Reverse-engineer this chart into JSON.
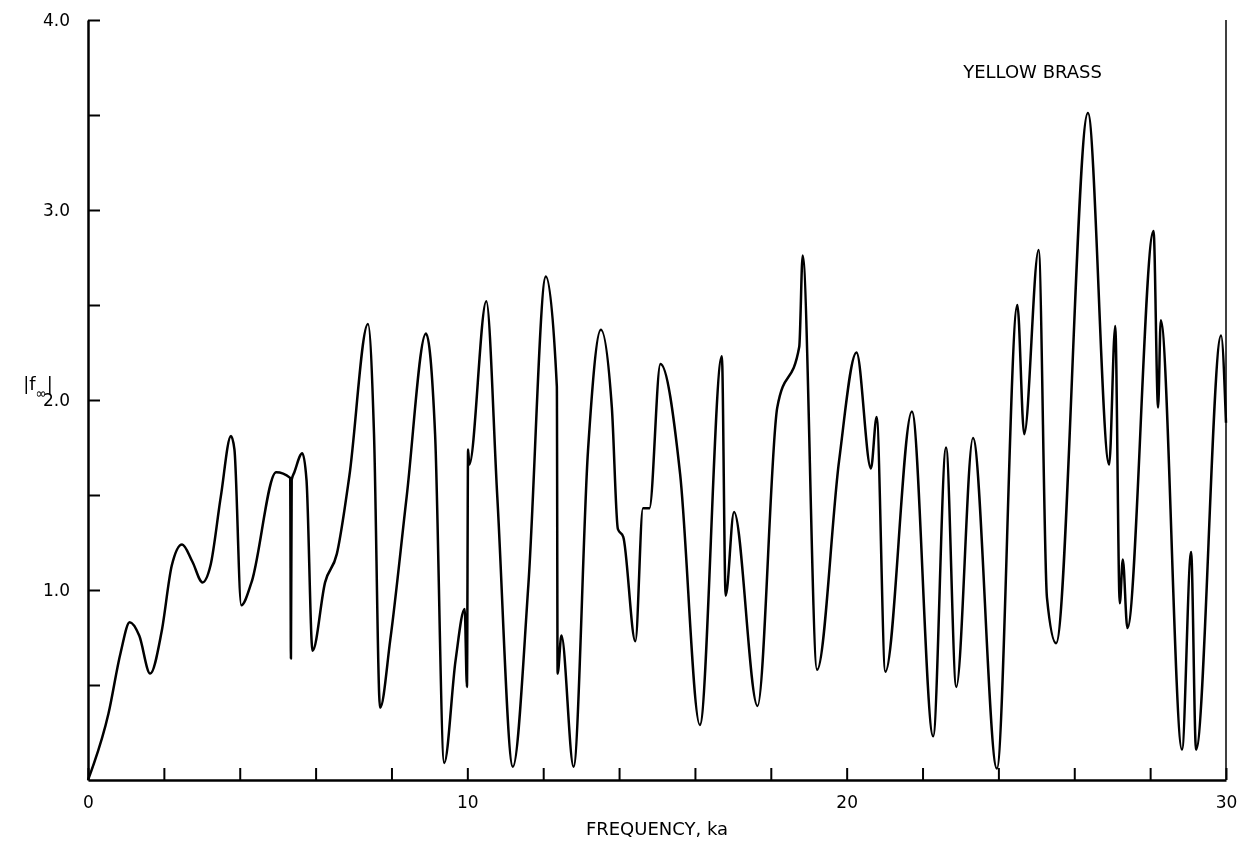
{
  "chart_data": {
    "type": "line",
    "title": "YELLOW BRASS",
    "xlabel": "FREQUENCY, ka",
    "ylabel": "|f$_{∞}$|",
    "xlim": [
      0,
      30
    ],
    "xticks": [
      0,
      {
        "value": 2,
        "label": null
      },
      {
        "value": 4,
        "label": null
      },
      {
        "value": 6,
        "label": null
      },
      {
        "value": 8,
        "label": null
      },
      10,
      {
        "value": 12,
        "label": null
      },
      {
        "value": 14,
        "label": null
      },
      {
        "value": 16,
        "label": null
      },
      {
        "value": 18,
        "label": null
      },
      20,
      {
        "value": 22,
        "label": null
      },
      {
        "value": 24,
        "label": null
      },
      {
        "value": 26,
        "label": null
      },
      {
        "value": 28,
        "label": null
      },
      30
    ],
    "ylim": [
      0,
      4
    ],
    "yticks": [
      {
        "value": 0.5,
        "label": null
      },
      {
        "value": 1,
        "label": "1.0"
      },
      {
        "value": 1.5,
        "label": null
      },
      {
        "value": 2,
        "label": "2.0"
      },
      {
        "value": 2.5,
        "label": null
      },
      {
        "value": 3,
        "label": "3.0"
      },
      {
        "value": 3.5,
        "label": null
      },
      {
        "value": 4,
        "label": "4.0"
      }
    ],
    "marker": "none",
    "line_style": "solid",
    "series": [
      {
        "color": "#000000",
        "x": [
          0,
          0.54,
          0.86,
          1.1,
          1.35,
          1.64,
          1.94,
          2.21,
          2.48,
          2.75,
          3.02,
          3.23,
          3.5,
          3.77,
          3.86,
          4.04,
          4.31,
          4.96,
          5.33,
          5.35,
          5.37,
          5.44,
          5.65,
          5.76,
          5.92,
          6.25,
          6.56,
          6.89,
          7.38,
          7.54,
          7.7,
          7.97,
          8.4,
          8.91,
          9.15,
          9.39,
          9.69,
          9.93,
          9.99,
          10.02,
          10.05,
          10.5,
          10.79,
          11.2,
          11.61,
          12.07,
          12.36,
          12.38,
          12.48,
          12.8,
          13.18,
          13.52,
          13.81,
          13.97,
          14.11,
          14.43,
          14.63,
          14.8,
          15.09,
          15.61,
          16.13,
          16.71,
          16.81,
          17.03,
          17.65,
          18.17,
          18.75,
          18.84,
          19.22,
          19.8,
          20.26,
          20.64,
          20.79,
          21.02,
          21.72,
          22.28,
          22.62,
          22.89,
          23.33,
          23.96,
          24.5,
          24.68,
          25.06,
          25.28,
          25.52,
          26.36,
          26.92,
          27.08,
          27.2,
          27.28,
          27.4,
          28.09,
          28.21,
          28.28,
          28.84,
          29.08,
          29.21,
          29.87,
          30
        ],
        "values": [
          0,
          0.35,
          0.67,
          0.83,
          0.76,
          0.56,
          0.78,
          1.13,
          1.24,
          1.15,
          1.04,
          1.13,
          1.49,
          1.81,
          1.74,
          0.92,
          1.04,
          1.62,
          1.59,
          0.64,
          1.58,
          1.62,
          1.72,
          1.58,
          0.68,
          1.04,
          1.19,
          1.6,
          2.4,
          1.82,
          0.38,
          0.74,
          1.49,
          2.35,
          1.82,
          0.09,
          0.63,
          0.9,
          0.49,
          1.74,
          1.66,
          2.52,
          1.49,
          0.07,
          1.03,
          2.65,
          2.07,
          0.56,
          0.76,
          0.07,
          1.73,
          2.37,
          1.96,
          1.32,
          1.28,
          0.73,
          1.43,
          1.43,
          2.19,
          1.61,
          0.29,
          2.23,
          0.97,
          1.41,
          0.39,
          1.96,
          2.28,
          2.76,
          0.58,
          1.68,
          2.25,
          1.64,
          1.91,
          0.57,
          1.94,
          0.23,
          1.75,
          0.49,
          1.8,
          0.06,
          2.5,
          1.82,
          2.79,
          0.96,
          0.72,
          3.51,
          1.66,
          2.39,
          0.93,
          1.16,
          0.8,
          2.89,
          1.96,
          2.42,
          0.16,
          1.2,
          0.16,
          2.34,
          1.88
        ]
      }
    ]
  }
}
